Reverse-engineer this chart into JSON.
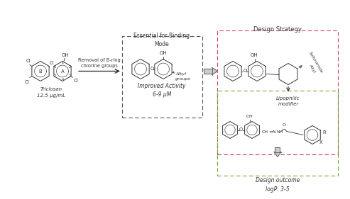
{
  "box1_label": "Essential for Binding\nMode",
  "box1_sublabel": "Improved Activity\n6-9 μM",
  "box1_alkyl": "Alkyl\ngroups",
  "box2_label": "Design Strategy",
  "box2_lipophilic": "Lipophilic\nmodifier",
  "box2_sulfonyl": "Sulfonamide",
  "box2_alkyl": "Alkyl",
  "box3_label": "Design outcome\nlogP: 3-5",
  "arrow_label": "Removal of B-ring\nchlorine groups",
  "triclosan_label": "Triclosan\n12.5 μg/mL",
  "bg_color": "#ffffff",
  "box1_border": "#555555",
  "box2_border": "#d04060",
  "box3_border": "#70aa30",
  "structure_color": "#333333",
  "text_color": "#333333"
}
